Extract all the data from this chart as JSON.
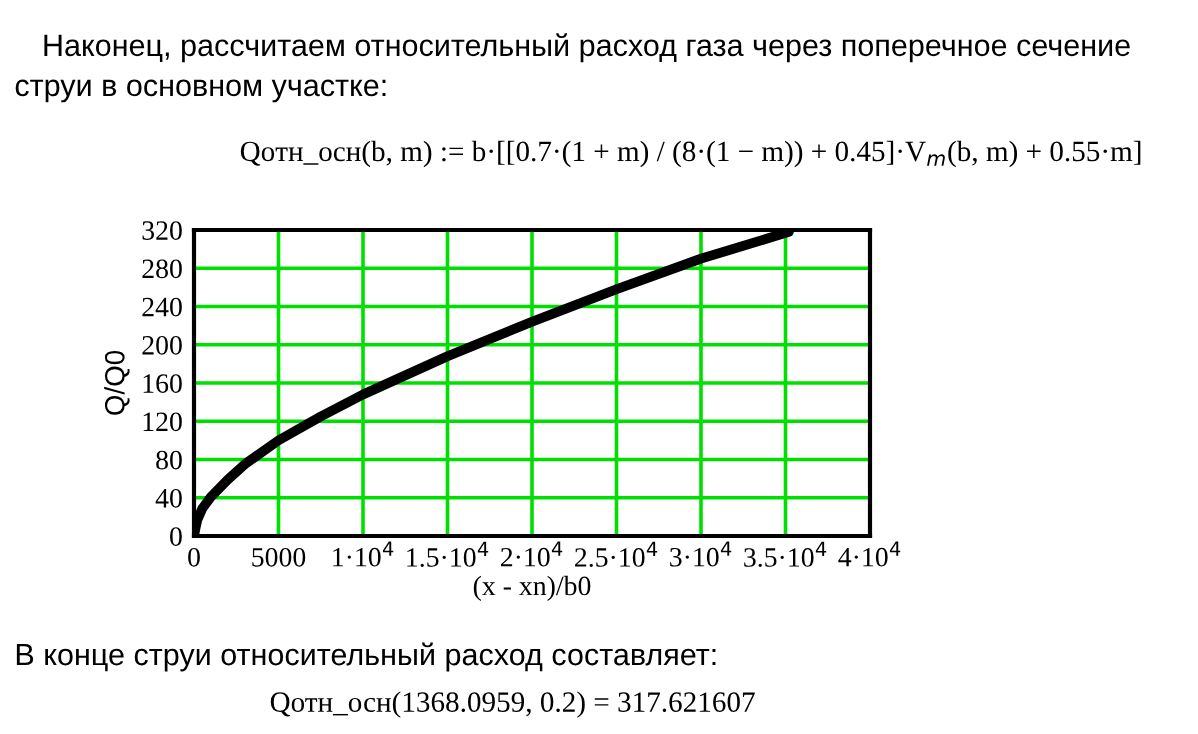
{
  "chart_data": {
    "type": "line",
    "xlabel": "(x - xn)/b0",
    "ylabel": "Q/Q0",
    "x": [
      0,
      100,
      200,
      500,
      1000,
      2000,
      3000,
      5000,
      7500,
      10000,
      15000,
      20000,
      25000,
      30000,
      35200
    ],
    "series": [
      {
        "color": "#000000",
        "values": [
          0,
          9,
          17,
          29,
          41,
          59,
          75,
          100,
          125,
          148,
          188,
          224,
          258,
          290,
          318
        ]
      }
    ],
    "xlim": [
      0,
      40000
    ],
    "ylim": [
      0,
      320
    ],
    "xticks": [
      0,
      5000,
      {
        "value": 10000,
        "label": "1·10$^{4}$"
      },
      {
        "value": 15000,
        "label": "1.5·10$^{4}$"
      },
      {
        "value": 20000,
        "label": "2·10$^{4}$"
      },
      {
        "value": 25000,
        "label": "2.5·10$^{4}$"
      },
      {
        "value": 30000,
        "label": "3·10$^{4}$"
      },
      {
        "value": 35000,
        "label": "3.5·10$^{4}$"
      },
      {
        "value": 40000,
        "label": "4·10$^{4}$"
      }
    ],
    "yticks": [
      0,
      40,
      80,
      120,
      160,
      200,
      240,
      280,
      320
    ],
    "grid": true,
    "marker": "none",
    "line_style": "solid",
    "annotations": [
      "Наконец, рассчитаем относительный расход газа через поперечное сечение",
      "струи в основном участке:",
      "Qотн_осн(b, m) := b·[[0.7·(1 + m) / (8·(1 − m)) + 0.45]·V$_{m}$(b, m) + 0.55·m]",
      "В конце струи относительный расход составляет:",
      "Qотн_осн(1368.0959, 0.2) = 317.621607"
    ]
  }
}
